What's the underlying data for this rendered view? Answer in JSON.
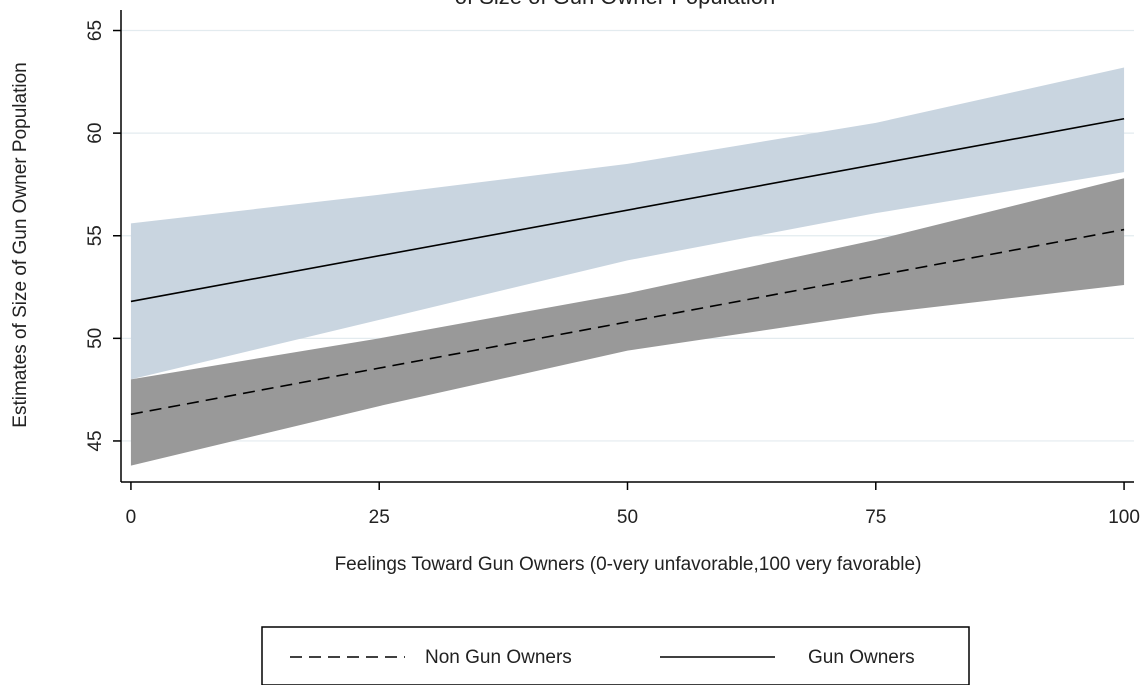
{
  "chart_data": {
    "type": "line",
    "title": "of Size of Gun Owner Population",
    "xlabel": "Feelings Toward Gun Owners (0-very unfavorable,100 very favorable)",
    "ylabel": "Estimates of Size of Gun Owner Population",
    "xlim": [
      -1,
      101
    ],
    "ylim": [
      43,
      66
    ],
    "x_ticks": [
      0,
      25,
      50,
      75,
      100
    ],
    "y_ticks": [
      45,
      50,
      55,
      60,
      65
    ],
    "grid": true,
    "legend_position": "bottom",
    "series": [
      {
        "name": "Non Gun Owners",
        "style": "dashed",
        "line_color": "#000000",
        "band_color": "#999999",
        "x": [
          0,
          100
        ],
        "y": [
          46.3,
          55.3
        ],
        "ci_lower": [
          [
            0,
            43.8
          ],
          [
            25,
            46.7
          ],
          [
            50,
            49.4
          ],
          [
            75,
            51.2
          ],
          [
            100,
            52.6
          ]
        ],
        "ci_upper": [
          [
            0,
            48.0
          ],
          [
            25,
            50.0
          ],
          [
            50,
            52.2
          ],
          [
            75,
            54.8
          ],
          [
            100,
            57.8
          ]
        ]
      },
      {
        "name": "Gun Owners",
        "style": "solid",
        "line_color": "#000000",
        "band_color": "#c9d5e0",
        "x": [
          0,
          100
        ],
        "y": [
          51.8,
          60.7
        ],
        "ci_lower": [
          [
            0,
            48.0
          ],
          [
            25,
            50.9
          ],
          [
            50,
            53.8
          ],
          [
            75,
            56.1
          ],
          [
            100,
            58.1
          ]
        ],
        "ci_upper": [
          [
            0,
            55.6
          ],
          [
            25,
            57.0
          ],
          [
            50,
            58.5
          ],
          [
            75,
            60.5
          ],
          [
            100,
            63.2
          ]
        ]
      }
    ]
  }
}
